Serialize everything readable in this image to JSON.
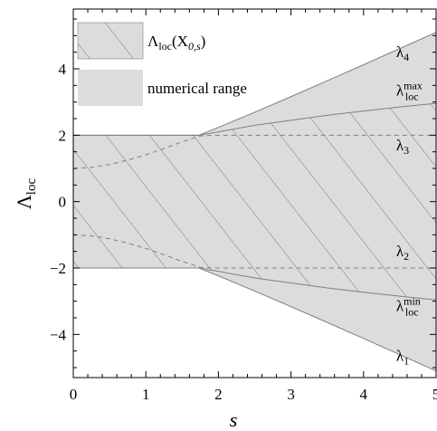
{
  "chart_data": {
    "type": "area",
    "xlabel": "s",
    "ylabel": {
      "base": "Λ",
      "sub": "loc"
    },
    "xlim": [
      0,
      5
    ],
    "ylim": [
      -5.3,
      5.8
    ],
    "x_ticks": [
      0,
      1,
      2,
      3,
      4,
      5
    ],
    "y_ticks": [
      4,
      2,
      0,
      -2,
      -4
    ],
    "x_tick_labels": [
      "0",
      "1",
      "2",
      "3",
      "4",
      "5"
    ],
    "y_tick_labels": [
      "4",
      "2",
      "0",
      "−2",
      "−4"
    ],
    "legend": {
      "placement": "top-left",
      "items": [
        {
          "label_base": "Λ",
          "label_sub": "loc",
          "label_rest_open": "(X",
          "label_rest_sub": "0,s",
          "label_rest_close": ")",
          "style": "hatched"
        },
        {
          "label": "numerical range",
          "style": "filled"
        }
      ]
    },
    "curve_labels": [
      {
        "base": "λ",
        "sub": "4",
        "sup": "",
        "x": 4.45,
        "y": 4.35
      },
      {
        "base": "λ",
        "sub": "loc",
        "sup": "max",
        "x": 4.45,
        "y": 3.2
      },
      {
        "base": "λ",
        "sub": "3",
        "sup": "",
        "x": 4.45,
        "y": 1.55
      },
      {
        "base": "λ",
        "sub": "2",
        "sup": "",
        "x": 4.45,
        "y": -1.65
      },
      {
        "base": "λ",
        "sub": "loc",
        "sup": "min",
        "x": 4.45,
        "y": -3.3
      },
      {
        "base": "λ",
        "sub": "1",
        "sup": "",
        "x": 4.45,
        "y": -4.8
      }
    ],
    "series": [
      {
        "name": "λ4",
        "style": "solid",
        "x": [
          0,
          1.732,
          2,
          2.5,
          3,
          3.5,
          4,
          4.5,
          5
        ],
        "y": [
          2,
          2,
          2.236,
          2.693,
          3.162,
          3.64,
          4.123,
          4.61,
          5.099
        ]
      },
      {
        "name": "λ1",
        "style": "solid",
        "x": [
          0,
          1.732,
          2,
          2.5,
          3,
          3.5,
          4,
          4.5,
          5
        ],
        "y": [
          -2,
          -2,
          -2.236,
          -2.693,
          -3.162,
          -3.64,
          -4.123,
          -4.61,
          -5.099
        ]
      },
      {
        "name": "λloc max",
        "style": "solid",
        "x": [
          0,
          1.732,
          2,
          2.5,
          3,
          3.5,
          4,
          4.5,
          5
        ],
        "y": [
          2,
          2,
          2.1,
          2.3,
          2.45,
          2.6,
          2.73,
          2.85,
          2.96
        ]
      },
      {
        "name": "λloc min",
        "style": "solid",
        "x": [
          0,
          1.732,
          2,
          2.5,
          3,
          3.5,
          4,
          4.5,
          5
        ],
        "y": [
          -2,
          -2,
          -2.1,
          -2.3,
          -2.45,
          -2.6,
          -2.73,
          -2.85,
          -2.96
        ]
      },
      {
        "name": "λ3",
        "style": "dashed",
        "x": [
          0,
          0.25,
          0.5,
          0.75,
          1,
          1.25,
          1.5,
          1.75,
          2,
          2.5,
          3,
          3.5,
          4,
          4.5,
          5
        ],
        "y": [
          1,
          1.03,
          1.12,
          1.25,
          1.41,
          1.6,
          1.8,
          1.98,
          2,
          2,
          2,
          2,
          2,
          2,
          2
        ]
      },
      {
        "name": "λ2",
        "style": "dashed",
        "x": [
          0,
          0.25,
          0.5,
          0.75,
          1,
          1.25,
          1.5,
          1.75,
          2,
          2.5,
          3,
          3.5,
          4,
          4.5,
          5
        ],
        "y": [
          -1,
          -1.03,
          -1.12,
          -1.25,
          -1.41,
          -1.6,
          -1.8,
          -1.98,
          -2,
          -2,
          -2,
          -2,
          -2,
          -2,
          -2
        ]
      }
    ],
    "regions": [
      {
        "name": "numerical range",
        "upper": "λ4",
        "lower": "λ1",
        "fill": "#dcdcdc"
      },
      {
        "name": "Λloc(X0,s)",
        "upper": "λloc max",
        "lower": "λloc min",
        "fill": "#dcdcdc",
        "hatch": "diagonal"
      }
    ],
    "colors": {
      "fill": "#dcdcdc",
      "line": "#808080",
      "hatch": "#7a7a7a",
      "axis": "#000000"
    }
  }
}
